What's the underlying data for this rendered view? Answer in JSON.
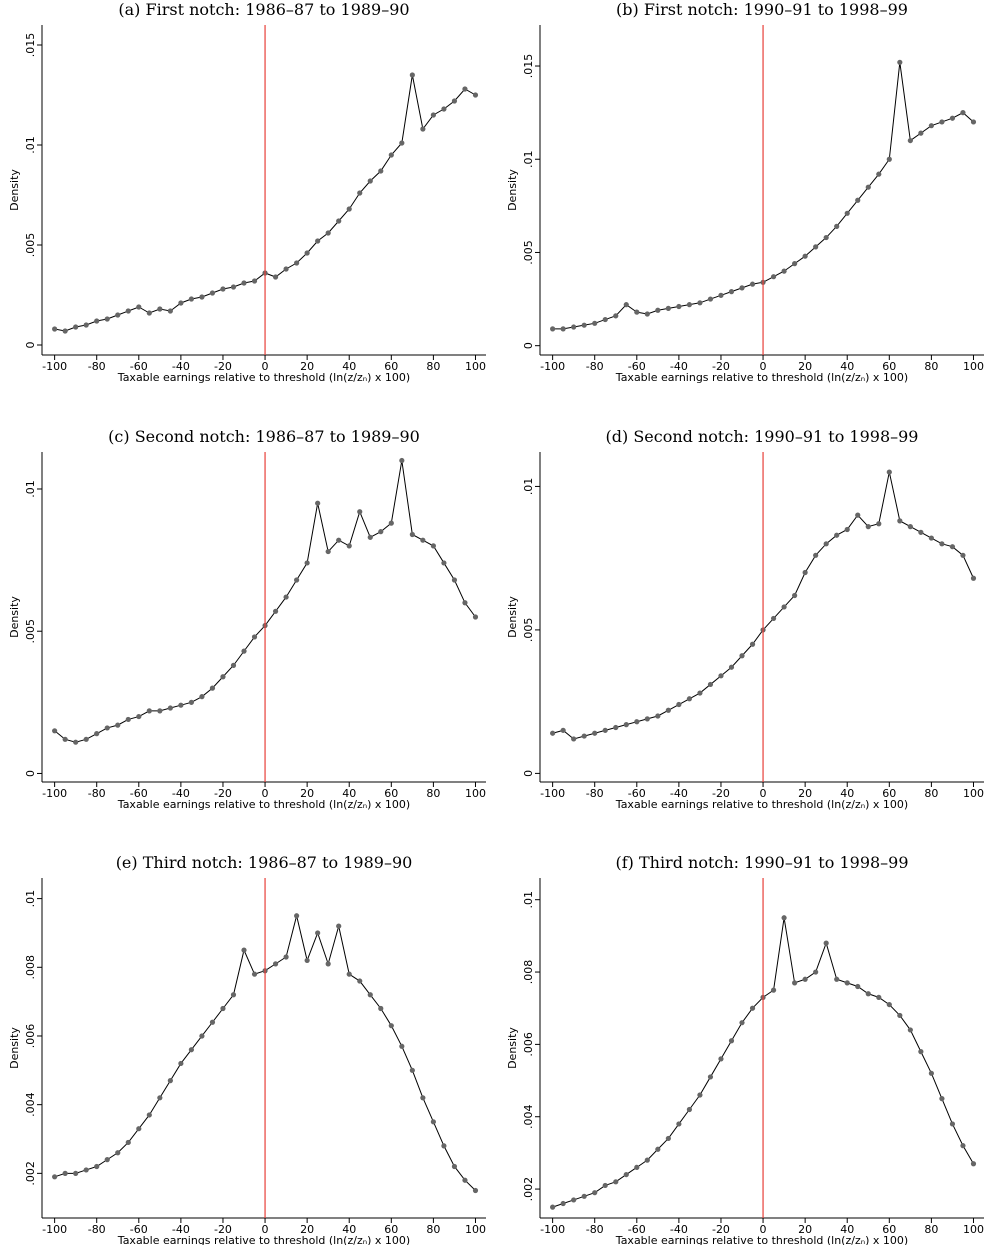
{
  "chart_data": [
    {
      "type": "line",
      "title": "(a) First notch: 1986–87 to 1989–90",
      "xlabel": "Taxable earnings relative to threshold (ln(z/zₙ) x 100)",
      "ylabel": "Density",
      "x": [
        -100,
        -95,
        -90,
        -85,
        -80,
        -75,
        -70,
        -65,
        -60,
        -55,
        -50,
        -45,
        -40,
        -35,
        -30,
        -25,
        -20,
        -15,
        -10,
        -5,
        0,
        5,
        10,
        15,
        20,
        25,
        30,
        35,
        40,
        45,
        50,
        55,
        60,
        65,
        70,
        75,
        80,
        85,
        90,
        95,
        100
      ],
      "values": [
        0.0008,
        0.0007,
        0.0009,
        0.001,
        0.0012,
        0.0013,
        0.0015,
        0.0017,
        0.0019,
        0.0016,
        0.0018,
        0.0017,
        0.0021,
        0.0023,
        0.0024,
        0.0026,
        0.0028,
        0.0029,
        0.0031,
        0.0032,
        0.0036,
        0.0034,
        0.0038,
        0.0041,
        0.0046,
        0.0052,
        0.0056,
        0.0062,
        0.0068,
        0.0076,
        0.0082,
        0.0087,
        0.0095,
        0.0101,
        0.0135,
        0.0108,
        0.0115,
        0.0118,
        0.0122,
        0.0128,
        0.0125
      ],
      "xlim": [
        -106,
        105
      ],
      "ylim": [
        -0.0005,
        0.016
      ],
      "xticks": [
        -100,
        -80,
        -60,
        -40,
        -20,
        0,
        20,
        40,
        60,
        80,
        100
      ],
      "yticks": [
        0,
        {
          "value": 0.005,
          "label": ".005"
        },
        {
          "value": 0.01,
          "label": ".01"
        },
        {
          "value": 0.015,
          "label": ".015"
        }
      ],
      "color": "#000000",
      "marker_color": "#666666",
      "vline": 0,
      "vline_color": "#e8403a"
    },
    {
      "type": "line",
      "title": "(b) First notch: 1990–91 to 1998–99",
      "xlabel": "Taxable earnings relative to threshold (ln(z/zₙ) x 100)",
      "ylabel": "Density",
      "x": [
        -100,
        -95,
        -90,
        -85,
        -80,
        -75,
        -70,
        -65,
        -60,
        -55,
        -50,
        -45,
        -40,
        -35,
        -30,
        -25,
        -20,
        -15,
        -10,
        -5,
        0,
        5,
        10,
        15,
        20,
        25,
        30,
        35,
        40,
        45,
        50,
        55,
        60,
        65,
        70,
        75,
        80,
        85,
        90,
        95,
        100
      ],
      "values": [
        0.0009,
        0.0009,
        0.001,
        0.0011,
        0.0012,
        0.0014,
        0.0016,
        0.0022,
        0.0018,
        0.0017,
        0.0019,
        0.002,
        0.0021,
        0.0022,
        0.0023,
        0.0025,
        0.0027,
        0.0029,
        0.0031,
        0.0033,
        0.0034,
        0.0037,
        0.004,
        0.0044,
        0.0048,
        0.0053,
        0.0058,
        0.0064,
        0.0071,
        0.0078,
        0.0085,
        0.0092,
        0.01,
        0.0152,
        0.011,
        0.0114,
        0.0118,
        0.012,
        0.0122,
        0.0125,
        0.012
      ],
      "xlim": [
        -106,
        105
      ],
      "ylim": [
        -0.0005,
        0.0172
      ],
      "xticks": [
        -100,
        -80,
        -60,
        -40,
        -20,
        0,
        20,
        40,
        60,
        80,
        100
      ],
      "yticks": [
        0,
        {
          "value": 0.005,
          "label": ".005"
        },
        {
          "value": 0.01,
          "label": ".01"
        },
        {
          "value": 0.015,
          "label": ".015"
        }
      ],
      "color": "#000000",
      "marker_color": "#666666",
      "vline": 0,
      "vline_color": "#e8403a"
    },
    {
      "type": "line",
      "title": "(c) Second notch: 1986–87 to 1989–90",
      "xlabel": "Taxable earnings relative to threshold (ln(z/zₙ) x 100)",
      "ylabel": "Density",
      "x": [
        -100,
        -95,
        -90,
        -85,
        -80,
        -75,
        -70,
        -65,
        -60,
        -55,
        -50,
        -45,
        -40,
        -35,
        -30,
        -25,
        -20,
        -15,
        -10,
        -5,
        0,
        5,
        10,
        15,
        20,
        25,
        30,
        35,
        40,
        45,
        50,
        55,
        60,
        65,
        70,
        75,
        80,
        85,
        90,
        95,
        100
      ],
      "values": [
        0.0015,
        0.0012,
        0.0011,
        0.0012,
        0.0014,
        0.0016,
        0.0017,
        0.0019,
        0.002,
        0.0022,
        0.0022,
        0.0023,
        0.0024,
        0.0025,
        0.0027,
        0.003,
        0.0034,
        0.0038,
        0.0043,
        0.0048,
        0.0052,
        0.0057,
        0.0062,
        0.0068,
        0.0074,
        0.0095,
        0.0078,
        0.0082,
        0.008,
        0.0092,
        0.0083,
        0.0085,
        0.0088,
        0.011,
        0.0084,
        0.0082,
        0.008,
        0.0074,
        0.0068,
        0.006,
        0.0055
      ],
      "xlim": [
        -106,
        105
      ],
      "ylim": [
        -0.0003,
        0.0113
      ],
      "xticks": [
        -100,
        -80,
        -60,
        -40,
        -20,
        0,
        20,
        40,
        60,
        80,
        100
      ],
      "yticks": [
        0,
        {
          "value": 0.005,
          "label": ".005"
        },
        {
          "value": 0.01,
          "label": ".01"
        }
      ],
      "color": "#000000",
      "marker_color": "#666666",
      "vline": 0,
      "vline_color": "#e8403a"
    },
    {
      "type": "line",
      "title": "(d) Second notch: 1990–91 to 1998–99",
      "xlabel": "Taxable earnings relative to threshold (ln(z/zₙ) x 100)",
      "ylabel": "Density",
      "x": [
        -100,
        -95,
        -90,
        -85,
        -80,
        -75,
        -70,
        -65,
        -60,
        -55,
        -50,
        -45,
        -40,
        -35,
        -30,
        -25,
        -20,
        -15,
        -10,
        -5,
        0,
        5,
        10,
        15,
        20,
        25,
        30,
        35,
        40,
        45,
        50,
        55,
        60,
        65,
        70,
        75,
        80,
        85,
        90,
        95,
        100
      ],
      "values": [
        0.0014,
        0.0015,
        0.0012,
        0.0013,
        0.0014,
        0.0015,
        0.0016,
        0.0017,
        0.0018,
        0.0019,
        0.002,
        0.0022,
        0.0024,
        0.0026,
        0.0028,
        0.0031,
        0.0034,
        0.0037,
        0.0041,
        0.0045,
        0.005,
        0.0054,
        0.0058,
        0.0062,
        0.007,
        0.0076,
        0.008,
        0.0083,
        0.0085,
        0.009,
        0.0086,
        0.0087,
        0.0105,
        0.0088,
        0.0086,
        0.0084,
        0.0082,
        0.008,
        0.0079,
        0.0076,
        0.0068
      ],
      "xlim": [
        -106,
        105
      ],
      "ylim": [
        -0.0003,
        0.0112
      ],
      "xticks": [
        -100,
        -80,
        -60,
        -40,
        -20,
        0,
        20,
        40,
        60,
        80,
        100
      ],
      "yticks": [
        0,
        {
          "value": 0.005,
          "label": ".005"
        },
        {
          "value": 0.01,
          "label": ".01"
        }
      ],
      "color": "#000000",
      "marker_color": "#666666",
      "vline": 0,
      "vline_color": "#e8403a"
    },
    {
      "type": "line",
      "title": "(e) Third notch: 1986–87 to 1989–90",
      "xlabel": "Taxable earnings relative to threshold (ln(z/zₙ) x 100)",
      "ylabel": "Density",
      "x": [
        -100,
        -95,
        -90,
        -85,
        -80,
        -75,
        -70,
        -65,
        -60,
        -55,
        -50,
        -45,
        -40,
        -35,
        -30,
        -25,
        -20,
        -15,
        -10,
        -5,
        0,
        5,
        10,
        15,
        20,
        25,
        30,
        35,
        40,
        45,
        50,
        55,
        60,
        65,
        70,
        75,
        80,
        85,
        90,
        95,
        100
      ],
      "values": [
        0.0019,
        0.002,
        0.002,
        0.0021,
        0.0022,
        0.0024,
        0.0026,
        0.0029,
        0.0033,
        0.0037,
        0.0042,
        0.0047,
        0.0052,
        0.0056,
        0.006,
        0.0064,
        0.0068,
        0.0072,
        0.0085,
        0.0078,
        0.0079,
        0.0081,
        0.0083,
        0.0095,
        0.0082,
        0.009,
        0.0081,
        0.0092,
        0.0078,
        0.0076,
        0.0072,
        0.0068,
        0.0063,
        0.0057,
        0.005,
        0.0042,
        0.0035,
        0.0028,
        0.0022,
        0.0018,
        0.0015
      ],
      "xlim": [
        -106,
        105
      ],
      "ylim": [
        0.0007,
        0.0106
      ],
      "xticks": [
        -100,
        -80,
        -60,
        -40,
        -20,
        0,
        20,
        40,
        60,
        80,
        100
      ],
      "yticks": [
        {
          "value": 0.002,
          "label": ".002"
        },
        {
          "value": 0.004,
          "label": ".004"
        },
        {
          "value": 0.006,
          "label": ".006"
        },
        {
          "value": 0.008,
          "label": ".008"
        },
        {
          "value": 0.01,
          "label": ".01"
        }
      ],
      "color": "#000000",
      "marker_color": "#666666",
      "vline": 0,
      "vline_color": "#e8403a"
    },
    {
      "type": "line",
      "title": "(f) Third notch: 1990–91 to 1998–99",
      "xlabel": "Taxable earnings relative to threshold (ln(z/zₙ) x 100)",
      "ylabel": "Density",
      "x": [
        -100,
        -95,
        -90,
        -85,
        -80,
        -75,
        -70,
        -65,
        -60,
        -55,
        -50,
        -45,
        -40,
        -35,
        -30,
        -25,
        -20,
        -15,
        -10,
        -5,
        0,
        5,
        10,
        15,
        20,
        25,
        30,
        35,
        40,
        45,
        50,
        55,
        60,
        65,
        70,
        75,
        80,
        85,
        90,
        95,
        100
      ],
      "values": [
        0.0015,
        0.0016,
        0.0017,
        0.0018,
        0.0019,
        0.0021,
        0.0022,
        0.0024,
        0.0026,
        0.0028,
        0.0031,
        0.0034,
        0.0038,
        0.0042,
        0.0046,
        0.0051,
        0.0056,
        0.0061,
        0.0066,
        0.007,
        0.0073,
        0.0075,
        0.0095,
        0.0077,
        0.0078,
        0.008,
        0.0088,
        0.0078,
        0.0077,
        0.0076,
        0.0074,
        0.0073,
        0.0071,
        0.0068,
        0.0064,
        0.0058,
        0.0052,
        0.0045,
        0.0038,
        0.0032,
        0.0027
      ],
      "xlim": [
        -106,
        105
      ],
      "ylim": [
        0.0012,
        0.0106
      ],
      "xticks": [
        -100,
        -80,
        -60,
        -40,
        -20,
        0,
        20,
        40,
        60,
        80,
        100
      ],
      "yticks": [
        {
          "value": 0.002,
          "label": ".002"
        },
        {
          "value": 0.004,
          "label": ".004"
        },
        {
          "value": 0.006,
          "label": ".006"
        },
        {
          "value": 0.008,
          "label": ".008"
        },
        {
          "value": 0.01,
          "label": ".01"
        }
      ],
      "color": "#000000",
      "marker_color": "#666666",
      "vline": 0,
      "vline_color": "#e8403a"
    }
  ]
}
